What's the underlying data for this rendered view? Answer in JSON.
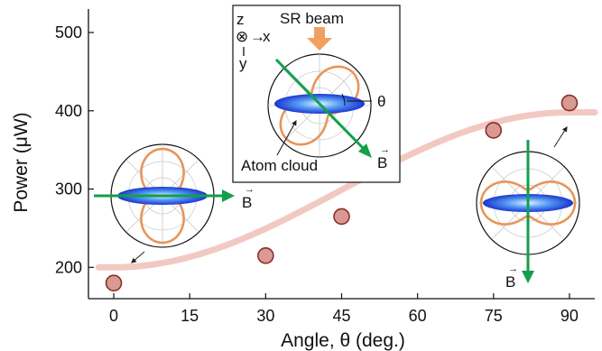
{
  "chart_data": {
    "type": "scatter",
    "xlabel": "Angle, θ (deg.)",
    "ylabel": "Power (μW)",
    "x_ticks": [
      0,
      15,
      30,
      45,
      60,
      75,
      90
    ],
    "y_ticks": [
      200,
      300,
      400,
      500
    ],
    "xlim": [
      -5,
      95
    ],
    "ylim": [
      160,
      530
    ],
    "grid": false,
    "series": [
      {
        "kind": "points",
        "x": [
          0,
          30,
          45,
          75,
          90
        ],
        "y": [
          180,
          215,
          265,
          375,
          410
        ],
        "color": "#d99a94",
        "edge_color": "#8b2e26"
      },
      {
        "kind": "fit",
        "model": "cos2",
        "color": "#f2c9c2",
        "params": {
          "offset": 200,
          "amplitude": 198
        }
      }
    ]
  },
  "insets": {
    "top": {
      "beam_label": "SR beam",
      "theta_label": "θ",
      "cloud_label": "Atom cloud",
      "field_label": "B",
      "coord_z": "z",
      "coord_x": "x",
      "coord_y": "y",
      "circle_symbol": "⊗",
      "arrow_symbol": "→"
    },
    "left": {
      "field_label": "B"
    },
    "right": {
      "field_label": "B"
    }
  },
  "colors": {
    "pattern": "#e8955a",
    "field_arrow": "#12a04a",
    "cloud_core": "#9fd1ff",
    "cloud_edge": "#1f3fd6",
    "beam_arrow": "#f0a060",
    "fit": "#f2c9c2"
  }
}
